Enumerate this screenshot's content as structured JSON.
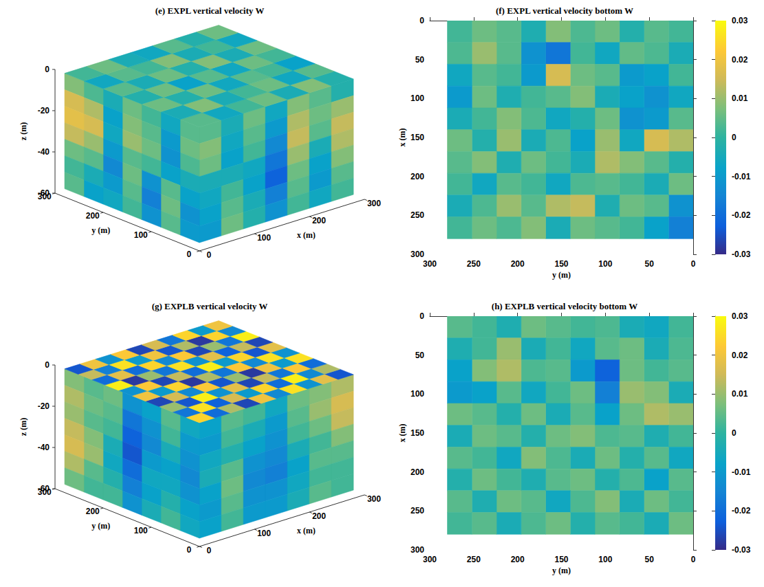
{
  "chart_data": [
    {
      "type": "volume",
      "title": "(e) EXPL vertical velocity W",
      "xlabel": "x (m)",
      "ylabel": "y (m)",
      "zlabel": "z (m)",
      "xlim": [
        0,
        300
      ],
      "xticks": [
        0,
        100,
        200,
        300
      ],
      "ylim": [
        0,
        300
      ],
      "yticks": [
        0,
        100,
        200,
        300
      ],
      "zlim": [
        -60,
        0
      ],
      "zticks": [
        -60,
        -40,
        -20,
        0
      ],
      "color_range": [
        -0.03,
        0.03
      ],
      "extent": {
        "x": [
          0,
          280
        ],
        "y": [
          0,
          280
        ],
        "z": [
          -56,
          0
        ]
      },
      "top_face": [
        [
          0.004,
          -0.004,
          0.006,
          -0.002,
          0.004,
          -0.006,
          0.002
        ],
        [
          -0.006,
          0.008,
          -0.002,
          0.006,
          -0.004,
          0.004,
          0.006
        ],
        [
          0.002,
          -0.004,
          0.006,
          -0.008,
          0.006,
          0.002,
          -0.004
        ],
        [
          0.006,
          0.002,
          -0.006,
          0.004,
          -0.002,
          0.008,
          -0.006
        ],
        [
          -0.004,
          0.006,
          0.004,
          -0.006,
          0.008,
          -0.004,
          0.004
        ],
        [
          0.008,
          -0.006,
          0.002,
          0.006,
          -0.004,
          0.002,
          -0.002
        ],
        [
          -0.002,
          0.004,
          -0.008,
          0.002,
          0.006,
          -0.006,
          0.006
        ]
      ],
      "x_face": [
        [
          0.004,
          -0.004,
          0.006,
          -0.006,
          0.008,
          0.004,
          -0.002
        ],
        [
          0.008,
          -0.006,
          0.004,
          -0.01,
          0.012,
          0.006,
          0.01
        ],
        [
          0.006,
          -0.008,
          0.002,
          -0.014,
          0.014,
          0.004,
          0.014
        ],
        [
          -0.004,
          -0.004,
          -0.006,
          -0.018,
          0.01,
          -0.004,
          0.012
        ],
        [
          -0.006,
          0.002,
          -0.008,
          -0.022,
          0.006,
          -0.008,
          0.008
        ],
        [
          -0.008,
          0.004,
          -0.004,
          -0.016,
          0.004,
          -0.01,
          0.004
        ],
        [
          -0.01,
          0.006,
          -0.002,
          -0.012,
          0.002,
          -0.006,
          0.002
        ]
      ],
      "y_face": [
        [
          0.004,
          -0.006,
          0.002,
          0.006,
          -0.004,
          0.003,
          0.008
        ],
        [
          0.006,
          -0.01,
          0.004,
          0.008,
          -0.008,
          0.012,
          0.016
        ],
        [
          0.003,
          -0.012,
          0.006,
          0.01,
          -0.006,
          0.016,
          0.018
        ],
        [
          -0.004,
          -0.008,
          0.002,
          0.004,
          -0.01,
          0.01,
          0.014
        ],
        [
          -0.008,
          0.004,
          -0.012,
          0.006,
          -0.014,
          0.004,
          0.006
        ],
        [
          -0.012,
          0.006,
          -0.016,
          0.004,
          -0.01,
          -0.004,
          0.002
        ],
        [
          -0.01,
          0.004,
          -0.012,
          0.002,
          -0.006,
          -0.008,
          0.004
        ]
      ]
    },
    {
      "type": "heatmap",
      "title": "(f) EXPL vertical velocity bottom W",
      "xlabel": "y (m)",
      "ylabel": "x (m)",
      "xlim": [
        300,
        0
      ],
      "xticks": [
        0,
        50,
        100,
        150,
        200,
        250,
        300
      ],
      "ylim": [
        300,
        0
      ],
      "yticks": [
        0,
        50,
        100,
        150,
        200,
        250,
        300
      ],
      "colorbar_range": [
        -0.03,
        0.03
      ],
      "colorbar_ticks": [
        -0.03,
        -0.02,
        -0.01,
        0,
        0.01,
        0.02,
        0.03
      ],
      "extent": {
        "x": [
          0,
          280
        ],
        "y": [
          0,
          280
        ]
      },
      "cells": [
        [
          0.002,
          0.004,
          -0.002,
          0.006,
          0.003,
          0.008,
          -0.003,
          0.004,
          0.006,
          0.002
        ],
        [
          -0.004,
          0.003,
          0.005,
          -0.006,
          0.002,
          -0.018,
          -0.012,
          0.004,
          0.01,
          0.003
        ],
        [
          0.002,
          -0.008,
          -0.01,
          0.004,
          0.006,
          0.016,
          -0.01,
          0.002,
          0.004,
          -0.006
        ],
        [
          -0.006,
          -0.012,
          -0.008,
          -0.004,
          0.008,
          0.004,
          0.002,
          -0.003,
          0.006,
          -0.01
        ],
        [
          0.004,
          -0.01,
          -0.012,
          0.006,
          -0.002,
          -0.006,
          0.003,
          0.008,
          0.002,
          -0.004
        ],
        [
          0.012,
          0.016,
          -0.006,
          0.01,
          -0.008,
          0.003,
          -0.004,
          0.01,
          -0.002,
          0.006
        ],
        [
          -0.002,
          0.004,
          0.008,
          0.012,
          -0.004,
          0.002,
          0.006,
          -0.003,
          0.008,
          0.004
        ],
        [
          0.006,
          -0.004,
          0.002,
          0.004,
          0.003,
          -0.006,
          0.002,
          0.004,
          -0.006,
          0.002
        ],
        [
          -0.012,
          0.004,
          0.006,
          -0.003,
          0.014,
          0.012,
          0.004,
          0.01,
          0.003,
          -0.004
        ],
        [
          -0.016,
          -0.008,
          0.002,
          0.004,
          0.006,
          -0.004,
          0.008,
          0.003,
          0.006,
          0.002
        ]
      ]
    },
    {
      "type": "volume",
      "title": "(g) EXPLB vertical velocity W",
      "xlabel": "x (m)",
      "ylabel": "y (m)",
      "zlabel": "z (m)",
      "xlim": [
        0,
        300
      ],
      "xticks": [
        0,
        100,
        200,
        300
      ],
      "ylim": [
        0,
        300
      ],
      "yticks": [
        0,
        100,
        200,
        300
      ],
      "zlim": [
        -60,
        0
      ],
      "zticks": [
        -60,
        -40,
        -20,
        0
      ],
      "color_range": [
        -0.03,
        0.03
      ],
      "extent": {
        "x": [
          0,
          280
        ],
        "y": [
          0,
          280
        ],
        "z": [
          -56,
          0
        ]
      },
      "top_face": [
        [
          0.024,
          -0.018,
          0.01,
          -0.026,
          0.02,
          -0.012,
          0.028,
          -0.02,
          0.014,
          -0.024
        ],
        [
          -0.02,
          0.026,
          -0.024,
          0.016,
          -0.01,
          0.022,
          -0.028,
          0.018,
          -0.016,
          0.02
        ],
        [
          0.012,
          -0.022,
          0.028,
          -0.014,
          0.024,
          -0.026,
          0.01,
          -0.02,
          0.026,
          -0.012
        ],
        [
          -0.026,
          0.016,
          -0.012,
          0.022,
          -0.028,
          0.014,
          -0.018,
          0.024,
          -0.01,
          0.022
        ],
        [
          0.02,
          -0.01,
          0.018,
          -0.024,
          0.012,
          -0.02,
          0.026,
          -0.014,
          0.02,
          -0.026
        ],
        [
          -0.014,
          0.024,
          -0.026,
          0.01,
          -0.018,
          0.028,
          -0.012,
          0.022,
          -0.024,
          0.016
        ],
        [
          0.026,
          -0.02,
          0.014,
          -0.028,
          0.022,
          -0.01,
          0.018,
          -0.026,
          0.012,
          -0.018
        ],
        [
          -0.012,
          0.028,
          -0.018,
          0.02,
          -0.014,
          0.024,
          -0.022,
          0.01,
          -0.028,
          0.024
        ],
        [
          0.018,
          -0.014,
          0.022,
          -0.01,
          0.026,
          -0.024,
          0.014,
          -0.018,
          0.024,
          -0.01
        ],
        [
          -0.024,
          0.012,
          -0.02,
          0.026,
          -0.012,
          0.018,
          -0.026,
          0.028,
          -0.014,
          0.02
        ]
      ],
      "x_face": [
        [
          -0.008,
          0.004,
          0.002,
          -0.006,
          0.006,
          0.008,
          0.012
        ],
        [
          -0.01,
          0.002,
          -0.004,
          -0.01,
          0.004,
          0.01,
          0.016
        ],
        [
          -0.006,
          -0.002,
          -0.008,
          -0.012,
          0.002,
          0.006,
          0.014
        ],
        [
          -0.004,
          0.004,
          -0.012,
          -0.014,
          -0.004,
          0.002,
          0.008
        ],
        [
          -0.008,
          0.006,
          -0.014,
          -0.016,
          -0.008,
          0.004,
          0.004
        ],
        [
          -0.01,
          0.004,
          -0.012,
          -0.012,
          -0.006,
          0.002,
          0.002
        ],
        [
          -0.008,
          0.002,
          -0.01,
          -0.01,
          -0.004,
          0.004,
          0.002
        ]
      ],
      "y_face": [
        [
          -0.006,
          0.004,
          -0.008,
          -0.012,
          0.006,
          0.004,
          0.008
        ],
        [
          -0.01,
          0.002,
          -0.012,
          -0.018,
          0.004,
          0.006,
          0.012
        ],
        [
          -0.012,
          -0.004,
          -0.014,
          -0.022,
          0.002,
          0.004,
          0.01
        ],
        [
          -0.014,
          -0.008,
          -0.01,
          -0.024,
          -0.004,
          0.008,
          0.014
        ],
        [
          -0.012,
          -0.006,
          -0.006,
          -0.02,
          -0.006,
          0.01,
          0.016
        ],
        [
          -0.008,
          -0.002,
          -0.008,
          -0.016,
          -0.002,
          0.004,
          0.012
        ],
        [
          -0.006,
          0.002,
          -0.004,
          -0.012,
          0.002,
          0.002,
          0.006
        ]
      ]
    },
    {
      "type": "heatmap",
      "title": "(h) EXPLB vertical velocity bottom W",
      "xlabel": "y (m)",
      "ylabel": "x (m)",
      "xlim": [
        300,
        0
      ],
      "xticks": [
        0,
        50,
        100,
        150,
        200,
        250,
        300
      ],
      "ylim": [
        300,
        0
      ],
      "yticks": [
        0,
        50,
        100,
        150,
        200,
        250,
        300
      ],
      "colorbar_range": [
        -0.03,
        0.03
      ],
      "colorbar_ticks": [
        -0.03,
        -0.02,
        -0.01,
        0,
        0.01,
        0.02,
        0.03
      ],
      "extent": {
        "x": [
          0,
          280
        ],
        "y": [
          0,
          280
        ]
      },
      "cells": [
        [
          0.002,
          -0.006,
          -0.004,
          0.003,
          0.002,
          0.004,
          0.006,
          -0.003,
          0.002,
          0.004
        ],
        [
          0.003,
          -0.004,
          0.006,
          0.004,
          -0.006,
          0.002,
          -0.004,
          0.01,
          0.002,
          -0.003
        ],
        [
          0.004,
          0.002,
          0.006,
          -0.022,
          -0.01,
          0.004,
          0.003,
          0.012,
          0.008,
          -0.008
        ],
        [
          -0.004,
          0.008,
          0.01,
          -0.016,
          0.006,
          0.002,
          -0.006,
          0.004,
          -0.008,
          -0.01
        ],
        [
          0.01,
          0.012,
          0.006,
          -0.008,
          0.004,
          -0.004,
          0.006,
          -0.002,
          0.004,
          0.006
        ],
        [
          0.002,
          -0.003,
          0.004,
          0.003,
          0.008,
          0.006,
          -0.002,
          0.004,
          0.006,
          -0.004
        ],
        [
          -0.006,
          0.004,
          -0.002,
          0.006,
          -0.004,
          0.003,
          0.008,
          -0.006,
          0.002,
          0.004
        ],
        [
          0.004,
          -0.008,
          0.003,
          -0.002,
          0.006,
          0.004,
          -0.003,
          0.002,
          0.006,
          -0.002
        ],
        [
          0.002,
          0.006,
          -0.004,
          0.008,
          0.003,
          -0.006,
          0.004,
          0.006,
          -0.003,
          0.004
        ],
        [
          0.006,
          -0.004,
          0.002,
          0.004,
          -0.002,
          0.006,
          0.003,
          -0.004,
          0.004,
          0.002
        ]
      ]
    }
  ]
}
